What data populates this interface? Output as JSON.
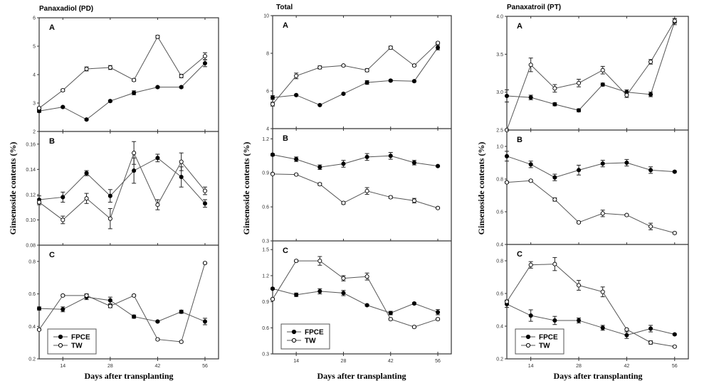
{
  "chart_data": [
    {
      "type": "line",
      "title": "Panaxadiol (PD)",
      "xlabel": "Days after transplanting",
      "ylabel": "Ginsenoside contents (%)",
      "x": [
        7,
        14,
        21,
        28,
        35,
        42,
        49,
        56
      ],
      "xlim": [
        7,
        60
      ],
      "xticks": [
        14,
        28,
        42,
        56
      ],
      "legend": {
        "placement": "bottom-left",
        "panel": "C",
        "entries": [
          "FPCE",
          "TW"
        ]
      },
      "panels": [
        {
          "label": "A",
          "ylim": [
            2,
            6
          ],
          "yticks": [
            "2",
            "3",
            "4",
            "5",
            "6"
          ],
          "series": [
            {
              "name": "FPCE",
              "values": [
                2.72,
                2.86,
                2.42,
                3.07,
                3.36,
                3.56,
                3.56,
                4.4
              ],
              "err": [
                0.05,
                0.03,
                0.02,
                0.03,
                0.07,
                0.03,
                0.03,
                0.12
              ]
            },
            {
              "name": "TW",
              "values": [
                2.82,
                3.45,
                4.2,
                4.25,
                3.81,
                5.33,
                3.95,
                4.65
              ],
              "err": [
                0.03,
                0.04,
                0.07,
                0.07,
                0.04,
                0.05,
                0.06,
                0.12
              ]
            }
          ]
        },
        {
          "label": "B",
          "ylim": [
            0.08,
            0.17
          ],
          "yticks": [
            "0.08",
            "0.10",
            "0.12",
            "0.14",
            "0.16"
          ],
          "series": [
            {
              "name": "FPCE",
              "values": [
                0.116,
                0.118,
                0.137,
                0.119,
                0.139,
                0.149,
                0.134,
                0.113
              ],
              "err": [
                0.003,
                0.004,
                0.002,
                0.005,
                0.01,
                0.003,
                0.008,
                0.003
              ]
            },
            {
              "name": "TW",
              "values": [
                0.114,
                0.1,
                0.117,
                0.101,
                0.153,
                0.112,
                0.146,
                0.123
              ],
              "err": [
                0.002,
                0.003,
                0.004,
                0.008,
                0.009,
                0.004,
                0.007,
                0.003
              ]
            }
          ]
        },
        {
          "label": "C",
          "ylim": [
            0.2,
            0.9
          ],
          "yticks": [
            "0.2",
            "0.4",
            "0.6",
            "0.8"
          ],
          "series": [
            {
              "name": "FPCE",
              "values": [
                0.51,
                0.505,
                0.58,
                0.56,
                0.46,
                0.43,
                0.49,
                0.43
              ],
              "err": [
                0.01,
                0.015,
                0.015,
                0.02,
                0.01,
                0.005,
                0.01,
                0.02
              ]
            },
            {
              "name": "TW",
              "values": [
                0.38,
                0.59,
                0.59,
                0.525,
                0.59,
                0.32,
                0.305,
                0.79
              ],
              "err": [
                0.005,
                0.005,
                0.01,
                0.01,
                0.005,
                0.005,
                0.005,
                0.005
              ]
            }
          ]
        }
      ]
    },
    {
      "type": "line",
      "title": "Total",
      "xlabel": "Days after transplanting",
      "ylabel": "Ginsenoside contents (%)",
      "x": [
        7,
        14,
        21,
        28,
        35,
        42,
        49,
        56
      ],
      "xlim": [
        7,
        60
      ],
      "xticks": [
        14,
        28,
        42,
        56
      ],
      "legend": {
        "placement": "bottom-left",
        "panel": "C",
        "entries": [
          "FPCE",
          "TW"
        ]
      },
      "panels": [
        {
          "label": "A",
          "ylim": [
            4,
            10
          ],
          "yticks": [
            "4",
            "6",
            "8",
            "10"
          ],
          "series": [
            {
              "name": "FPCE",
              "values": [
                5.65,
                5.78,
                5.25,
                5.85,
                6.45,
                6.55,
                6.52,
                8.3
              ],
              "err": [
                0.1,
                0.04,
                0.03,
                0.04,
                0.1,
                0.05,
                0.04,
                0.12
              ]
            },
            {
              "name": "TW",
              "values": [
                5.3,
                6.8,
                7.25,
                7.35,
                7.1,
                8.3,
                7.35,
                8.55
              ],
              "err": [
                0.1,
                0.15,
                0.08,
                0.04,
                0.08,
                0.08,
                0.05,
                0.05
              ]
            }
          ]
        },
        {
          "label": "B",
          "ylim": [
            0.3,
            1.29
          ],
          "yticks": [
            "0.3",
            "0.6",
            "0.9",
            "1.2"
          ],
          "series": [
            {
              "name": "FPCE",
              "values": [
                1.06,
                1.02,
                0.95,
                0.98,
                1.04,
                1.05,
                0.99,
                0.96
              ],
              "err": [
                0.01,
                0.02,
                0.02,
                0.03,
                0.03,
                0.03,
                0.02,
                0.005
              ]
            },
            {
              "name": "TW",
              "values": [
                0.89,
                0.885,
                0.8,
                0.635,
                0.74,
                0.685,
                0.655,
                0.59
              ],
              "err": [
                0.005,
                0.005,
                0.01,
                0.01,
                0.03,
                0.01,
                0.02,
                0.005
              ]
            }
          ]
        },
        {
          "label": "C",
          "ylim": [
            0.3,
            1.6
          ],
          "yticks": [
            "0.3",
            "0.6",
            "0.9",
            "1.2",
            "1.5"
          ],
          "series": [
            {
              "name": "FPCE",
              "values": [
                1.05,
                0.98,
                1.02,
                1.0,
                0.86,
                0.77,
                0.88,
                0.78
              ],
              "err": [
                0.01,
                0.02,
                0.03,
                0.03,
                0.01,
                0.02,
                0.01,
                0.03
              ]
            },
            {
              "name": "TW",
              "values": [
                0.93,
                1.37,
                1.37,
                1.17,
                1.19,
                0.7,
                0.61,
                0.7
              ],
              "err": [
                0.01,
                0.01,
                0.05,
                0.03,
                0.04,
                0.01,
                0.01,
                0.01
              ]
            }
          ]
        }
      ]
    },
    {
      "type": "line",
      "title": "Panaxatroil (PT)",
      "xlabel": "Days after transplanting",
      "ylabel": "Ginsenoside contents (%)",
      "x": [
        7,
        14,
        21,
        28,
        35,
        42,
        49,
        56
      ],
      "xlim": [
        7,
        60
      ],
      "xticks": [
        14,
        28,
        42,
        56
      ],
      "legend": {
        "placement": "bottom-left",
        "panel": "C",
        "entries": [
          "FPCE",
          "TW"
        ]
      },
      "panels": [
        {
          "label": "A",
          "ylim": [
            2.5,
            4.0
          ],
          "yticks": [
            "2.5",
            "3.0",
            "3.5",
            "4.0"
          ],
          "series": [
            {
              "name": "FPCE",
              "values": [
                2.95,
                2.93,
                2.84,
                2.76,
                3.1,
                3.0,
                2.97,
                3.93
              ],
              "err": [
                0.08,
                0.03,
                0.02,
                0.02,
                0.02,
                0.03,
                0.03,
                0.04
              ]
            },
            {
              "name": "TW",
              "values": [
                2.5,
                3.36,
                3.05,
                3.12,
                3.29,
                2.96,
                3.4,
                3.94
              ],
              "err": [
                0.01,
                0.09,
                0.05,
                0.05,
                0.05,
                0.03,
                0.03,
                0.03
              ]
            }
          ]
        },
        {
          "label": "B",
          "ylim": [
            0.4,
            1.1
          ],
          "yticks": [
            "0.4",
            "0.6",
            "0.8",
            "1.0"
          ],
          "series": [
            {
              "name": "FPCE",
              "values": [
                0.94,
                0.89,
                0.81,
                0.855,
                0.895,
                0.9,
                0.855,
                0.845
              ],
              "err": [
                0.03,
                0.02,
                0.02,
                0.03,
                0.02,
                0.02,
                0.02,
                0.005
              ]
            },
            {
              "name": "TW",
              "values": [
                0.78,
                0.79,
                0.675,
                0.535,
                0.59,
                0.58,
                0.51,
                0.47
              ],
              "err": [
                0.005,
                0.005,
                0.01,
                0.005,
                0.02,
                0.005,
                0.02,
                0.005
              ]
            }
          ]
        },
        {
          "label": "C",
          "ylim": [
            0.2,
            0.9
          ],
          "yticks": [
            "0.2",
            "0.4",
            "0.6",
            "0.8"
          ],
          "series": [
            {
              "name": "FPCE",
              "values": [
                0.535,
                0.465,
                0.435,
                0.435,
                0.39,
                0.345,
                0.385,
                0.35
              ],
              "err": [
                0.02,
                0.035,
                0.025,
                0.015,
                0.015,
                0.02,
                0.02,
                0.005
              ]
            },
            {
              "name": "TW",
              "values": [
                0.55,
                0.775,
                0.78,
                0.65,
                0.61,
                0.38,
                0.3,
                0.275
              ],
              "err": [
                0.01,
                0.02,
                0.04,
                0.03,
                0.03,
                0.005,
                0.01,
                0.005
              ]
            }
          ]
        }
      ]
    }
  ]
}
